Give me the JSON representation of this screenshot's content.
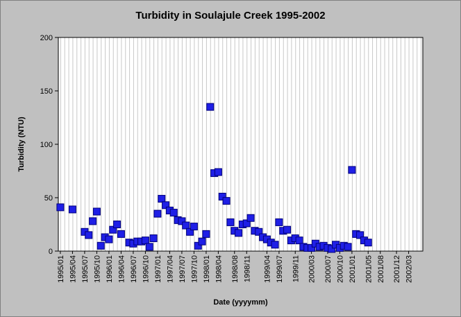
{
  "chart_data": {
    "type": "scatter",
    "title": "Turbidity in Soulajule Creek 1995-2002",
    "xlabel": "Date (yyyymm)",
    "ylabel": "Turbidity (NTU)",
    "ylim": [
      0,
      200
    ],
    "yticks": [
      0,
      50,
      100,
      150,
      200
    ],
    "xlim": [
      "1995/01",
      "2002/06"
    ],
    "grid": true,
    "marker_color": "#1f1fe6",
    "xtick_labels": [
      "1995/01",
      "1995/04",
      "1995/07",
      "1995/10",
      "1996/01",
      "1996/04",
      "1996/07",
      "1996/10",
      "1997/01",
      "1997/04",
      "1997/07",
      "1997/10",
      "1998/01",
      "1998/04",
      "1998/08",
      "1998/11",
      "1999/04",
      "1999/07",
      "1999/11",
      "2000/03",
      "2000/07",
      "2000/10",
      "2001/01",
      "2001/05",
      "2001/08",
      "2001/12",
      "2002/03"
    ],
    "points": [
      [
        "1995/01",
        41
      ],
      [
        "1995/04",
        39
      ],
      [
        "1995/07",
        18
      ],
      [
        "1995/08",
        15
      ],
      [
        "1995/09",
        28
      ],
      [
        "1995/10",
        37
      ],
      [
        "1995/11",
        5
      ],
      [
        "1995/12",
        13
      ],
      [
        "1996/01",
        11
      ],
      [
        "1996/02",
        20
      ],
      [
        "1996/03",
        25
      ],
      [
        "1996/04",
        16
      ],
      [
        "1996/06",
        8
      ],
      [
        "1996/07",
        7
      ],
      [
        "1996/08",
        9
      ],
      [
        "1996/09",
        9
      ],
      [
        "1996/10",
        10
      ],
      [
        "1996/11",
        4
      ],
      [
        "1996/12",
        12
      ],
      [
        "1997/01",
        35
      ],
      [
        "1997/02",
        49
      ],
      [
        "1997/03",
        43
      ],
      [
        "1997/04",
        38
      ],
      [
        "1997/05",
        36
      ],
      [
        "1997/06",
        29
      ],
      [
        "1997/07",
        28
      ],
      [
        "1997/08",
        24
      ],
      [
        "1997/09",
        18
      ],
      [
        "1997/10",
        23
      ],
      [
        "1997/11",
        5
      ],
      [
        "1997/12",
        9
      ],
      [
        "1998/01",
        16
      ],
      [
        "1998/02",
        135
      ],
      [
        "1998/03",
        73
      ],
      [
        "1998/04",
        74
      ],
      [
        "1998/05",
        51
      ],
      [
        "1998/06",
        47
      ],
      [
        "1998/07",
        27
      ],
      [
        "1998/08",
        19
      ],
      [
        "1998/09",
        17
      ],
      [
        "1998/10",
        25
      ],
      [
        "1998/11",
        26
      ],
      [
        "1998/12",
        31
      ],
      [
        "1999/01",
        19
      ],
      [
        "1999/02",
        18
      ],
      [
        "1999/03",
        13
      ],
      [
        "1999/04",
        11
      ],
      [
        "1999/05",
        8
      ],
      [
        "1999/06",
        6
      ],
      [
        "1999/07",
        27
      ],
      [
        "1999/08",
        19
      ],
      [
        "1999/09",
        20
      ],
      [
        "1999/10",
        10
      ],
      [
        "1999/11",
        12
      ],
      [
        "1999/12",
        10
      ],
      [
        "2000/01",
        4
      ],
      [
        "2000/02",
        3
      ],
      [
        "2000/03",
        3
      ],
      [
        "2000/04",
        7
      ],
      [
        "2000/05",
        4
      ],
      [
        "2000/06",
        5
      ],
      [
        "2000/07",
        3
      ],
      [
        "2000/08",
        2
      ],
      [
        "2000/09",
        6
      ],
      [
        "2000/10",
        3
      ],
      [
        "2000/11",
        5
      ],
      [
        "2000/12",
        4
      ],
      [
        "2001/01",
        76
      ],
      [
        "2001/02",
        16
      ],
      [
        "2001/03",
        15
      ],
      [
        "2001/04",
        10
      ],
      [
        "2001/05",
        8
      ]
    ]
  }
}
